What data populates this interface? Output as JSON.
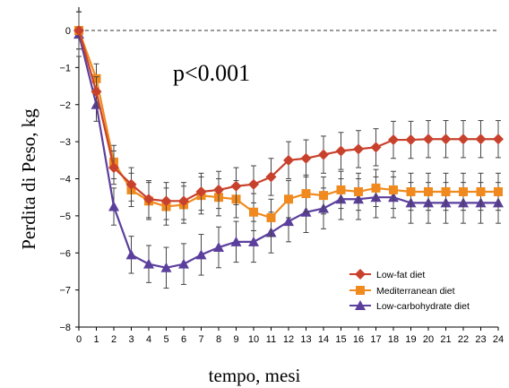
{
  "chart_data": {
    "type": "line",
    "xlabel": "tempo, mesi",
    "ylabel": "Perdita di Peso, kg",
    "annotation": "p<0.001",
    "xlim": [
      0,
      24
    ],
    "ylim": [
      -8,
      0
    ],
    "x_ticks": [
      "0",
      "1",
      "2",
      "3",
      "4",
      "5",
      "6",
      "7",
      "8",
      "9",
      "10",
      "11",
      "12",
      "13",
      "14",
      "15",
      "16",
      "17",
      "18",
      "19",
      "20",
      "21",
      "22",
      "23",
      "24"
    ],
    "y_ticks": [
      "0",
      "−1",
      "−2",
      "−3",
      "−4",
      "−5",
      "−6",
      "−7",
      "−8"
    ],
    "y_tick_values": [
      0,
      -1,
      -2,
      -3,
      -4,
      -5,
      -6,
      -7,
      -8
    ],
    "reference_line": 0,
    "legend_position": "bottom-right",
    "x": [
      0,
      1,
      2,
      3,
      4,
      5,
      6,
      7,
      8,
      9,
      10,
      11,
      12,
      13,
      14,
      15,
      16,
      17,
      18,
      19,
      20,
      21,
      22,
      23,
      24
    ],
    "series": [
      {
        "name": "Low-fat diet",
        "color": "#C8412C",
        "marker": "diamond",
        "values": [
          0,
          -1.65,
          -3.7,
          -4.15,
          -4.55,
          -4.6,
          -4.6,
          -4.35,
          -4.3,
          -4.2,
          -4.15,
          -3.95,
          -3.5,
          -3.45,
          -3.35,
          -3.25,
          -3.2,
          -3.15,
          -2.95,
          -2.95,
          -2.93,
          -2.93,
          -2.93,
          -2.93,
          -2.93
        ],
        "error": [
          0.5,
          0.4,
          0.45,
          0.45,
          0.5,
          0.5,
          0.5,
          0.5,
          0.5,
          0.5,
          0.5,
          0.5,
          0.5,
          0.5,
          0.5,
          0.5,
          0.5,
          0.5,
          0.5,
          0.5,
          0.5,
          0.5,
          0.5,
          0.5,
          0.5
        ]
      },
      {
        "name": "Mediterranean diet",
        "color": "#F08A1E",
        "marker": "square",
        "values": [
          0,
          -1.3,
          -3.55,
          -4.3,
          -4.6,
          -4.75,
          -4.7,
          -4.45,
          -4.5,
          -4.55,
          -4.9,
          -5.05,
          -4.55,
          -4.4,
          -4.45,
          -4.3,
          -4.35,
          -4.25,
          -4.3,
          -4.35,
          -4.35,
          -4.35,
          -4.35,
          -4.35,
          -4.35
        ],
        "error": [
          0.5,
          0.4,
          0.45,
          0.45,
          0.5,
          0.5,
          0.5,
          0.5,
          0.5,
          0.5,
          0.5,
          0.5,
          0.5,
          0.5,
          0.5,
          0.5,
          0.5,
          0.5,
          0.5,
          0.5,
          0.5,
          0.5,
          0.5,
          0.5,
          0.5
        ]
      },
      {
        "name": "Low-carbohydrate diet",
        "color": "#5B3F9C",
        "marker": "triangle",
        "values": [
          -0.1,
          -2.0,
          -4.75,
          -6.05,
          -6.3,
          -6.4,
          -6.3,
          -6.05,
          -5.85,
          -5.7,
          -5.7,
          -5.45,
          -5.15,
          -4.9,
          -4.8,
          -4.55,
          -4.55,
          -4.5,
          -4.5,
          -4.65,
          -4.65,
          -4.65,
          -4.65,
          -4.65,
          -4.65
        ],
        "error": [
          0.6,
          0.45,
          0.5,
          0.5,
          0.5,
          0.55,
          0.55,
          0.55,
          0.55,
          0.55,
          0.55,
          0.55,
          0.55,
          0.55,
          0.55,
          0.55,
          0.55,
          0.55,
          0.55,
          0.55,
          0.55,
          0.55,
          0.55,
          0.55,
          0.55
        ]
      }
    ]
  }
}
